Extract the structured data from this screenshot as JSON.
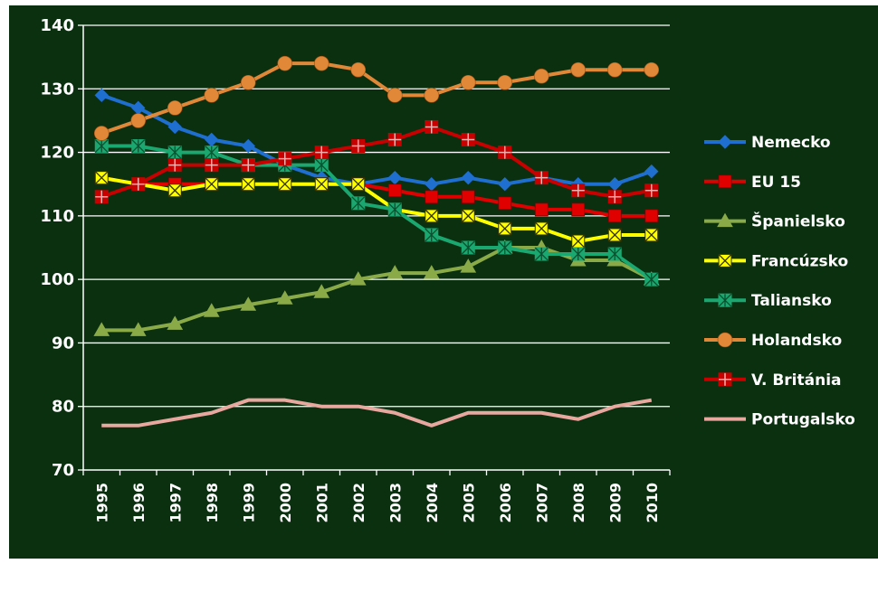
{
  "chart_data": {
    "type": "line",
    "title": "",
    "xlabel": "",
    "ylabel": "",
    "ylim": [
      70,
      140
    ],
    "yticks": [
      70,
      80,
      90,
      100,
      110,
      120,
      130,
      140
    ],
    "grid": true,
    "legend_position": "right",
    "background_color": "#0b3010",
    "grid_color": "#ffffff",
    "x": [
      "1995",
      "1996",
      "1997",
      "1998",
      "1999",
      "2000",
      "2001",
      "2002",
      "2003",
      "2004",
      "2005",
      "2006",
      "2007",
      "2008",
      "2009",
      "2010"
    ],
    "series": [
      {
        "name": "Nemecko",
        "color": "#1f6fd0",
        "marker": "diamond",
        "values": [
          129,
          127,
          124,
          122,
          121,
          118,
          116,
          115,
          116,
          115,
          116,
          115,
          116,
          115,
          115,
          117
        ]
      },
      {
        "name": "EU 15",
        "color": "#e00000",
        "marker": "square",
        "values": [
          116,
          115,
          115,
          115,
          115,
          115,
          115,
          115,
          114,
          113,
          113,
          112,
          111,
          111,
          110,
          110
        ]
      },
      {
        "name": "Španielsko",
        "color": "#8aaa48",
        "marker": "triangle",
        "values": [
          92,
          92,
          93,
          95,
          96,
          97,
          98,
          100,
          101,
          101,
          102,
          105,
          105,
          103,
          103,
          100
        ]
      },
      {
        "name": "Francúzsko",
        "color": "#ffff00",
        "marker": "xsquare",
        "values": [
          116,
          115,
          114,
          115,
          115,
          115,
          115,
          115,
          111,
          110,
          110,
          108,
          108,
          106,
          107,
          107
        ]
      },
      {
        "name": "Taliansko",
        "color": "#1aa870",
        "marker": "star",
        "values": [
          121,
          121,
          120,
          120,
          118,
          118,
          118,
          112,
          111,
          107,
          105,
          105,
          104,
          104,
          104,
          100
        ]
      },
      {
        "name": "Holandsko",
        "color": "#e08838",
        "marker": "circle",
        "values": [
          123,
          125,
          127,
          129,
          131,
          134,
          134,
          133,
          129,
          129,
          131,
          131,
          132,
          133,
          133,
          133
        ]
      },
      {
        "name": "V. Británia",
        "color": "#c80000",
        "marker": "plus",
        "values": [
          113,
          115,
          118,
          118,
          118,
          119,
          120,
          121,
          122,
          124,
          122,
          120,
          116,
          114,
          113,
          114
        ]
      },
      {
        "name": "Portugalsko",
        "color": "#e8a8a0",
        "marker": "dash",
        "values": [
          77,
          77,
          78,
          79,
          81,
          81,
          80,
          80,
          79,
          77,
          79,
          79,
          79,
          78,
          80,
          81
        ]
      }
    ]
  }
}
